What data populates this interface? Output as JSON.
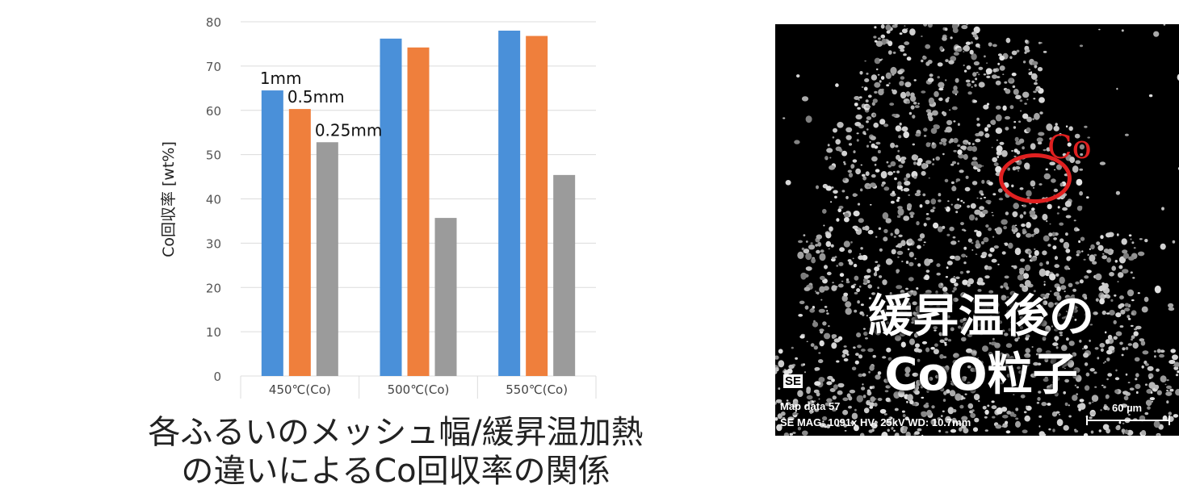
{
  "chart_data": {
    "type": "bar",
    "categories": [
      "450℃(Co)",
      "500℃(Co)",
      "550℃(Co)"
    ],
    "series": [
      {
        "name": "1mm",
        "color": "#4a90d9",
        "values": [
          64.5,
          76.2,
          78.0
        ]
      },
      {
        "name": "0.5mm",
        "color": "#ef7f3c",
        "values": [
          60.3,
          74.2,
          76.8
        ]
      },
      {
        "name": "0.25mm",
        "color": "#9b9b9b",
        "values": [
          52.8,
          35.7,
          45.4
        ]
      }
    ],
    "ylabel": "Co回収率 [wt%]",
    "ylim": [
      0,
      80
    ],
    "yticks": [
      0,
      10,
      20,
      30,
      40,
      50,
      60,
      70,
      80
    ],
    "grid": true
  },
  "caption": {
    "line1": "各ふるいのメッシュ幅/緩昇温加熱",
    "line2": "の違いによるCo回収率の関係"
  },
  "sem_image": {
    "marker_label": "Co",
    "overlay_line1": "緩昇温後の",
    "overlay_line2": "CoO粒子",
    "badge": "SE",
    "meta_line1": "Map data 57",
    "meta_line2": "SE  MAG: 1091x  HV: 25kV  WD: 10.7mm",
    "scale_label": "60 µm",
    "marker_color": "#e02020"
  }
}
